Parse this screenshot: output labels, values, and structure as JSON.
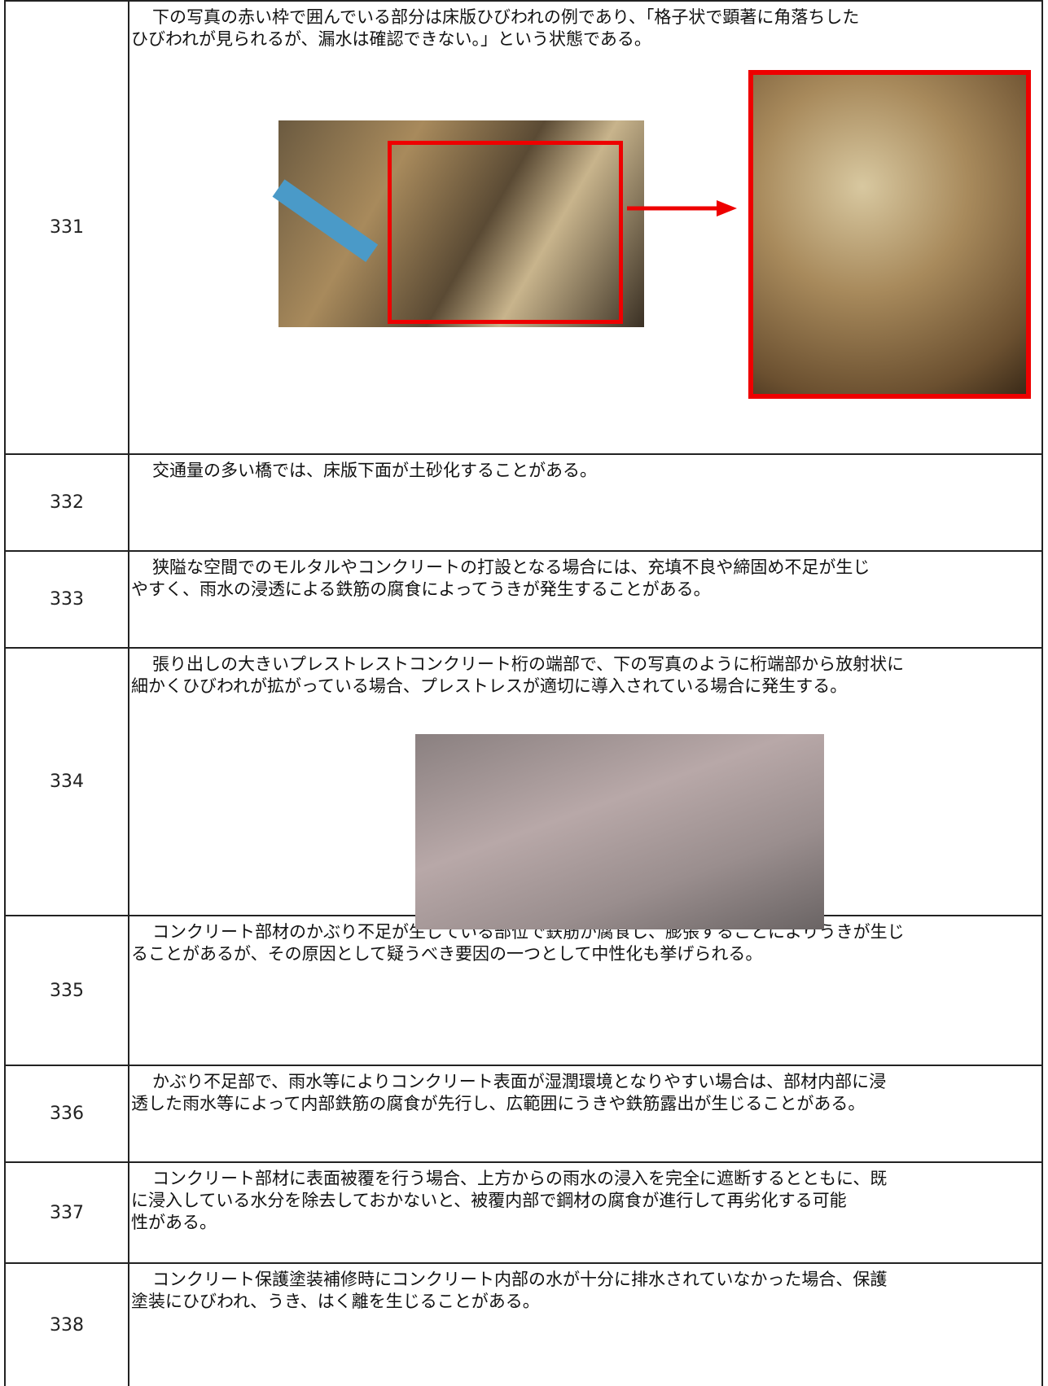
{
  "table": {
    "rows": [
      {
        "number": "331",
        "lines": [
          "下の写真の赤い枠で囲んでいる部分は床版ひびわれの例であり、「格子状で顕著に角落ちした",
          "ひびわれが見られるが、漏水は確認できない。」という状態である。"
        ]
      },
      {
        "number": "332",
        "lines": [
          "交通量の多い橋では、床版下面が土砂化することがある。"
        ]
      },
      {
        "number": "333",
        "lines": [
          "狭隘な空間でのモルタルやコンクリートの打設となる場合には、充填不良や締固め不足が生じ",
          "やすく、雨水の浸透による鉄筋の腐食によってうきが発生することがある。"
        ]
      },
      {
        "number": "334",
        "lines": [
          "張り出しの大きいプレストレストコンクリート桁の端部で、下の写真のように桁端部から放射状に",
          "細かくひびわれが拡がっている場合、プレストレスが適切に導入されている場合に発生する。"
        ]
      },
      {
        "number": "335",
        "lines": [
          "コンクリート部材のかぶり不足が生じている部位で鉄筋が腐食し、膨張することによりうきが生じ",
          "ることがあるが、その原因として疑うべき要因の一つとして中性化も挙げられる。"
        ]
      },
      {
        "number": "336",
        "lines": [
          "かぶり不足部で、雨水等によりコンクリート表面が湿潤環境となりやすい場合は、部材内部に浸",
          "透した雨水等によって内部鉄筋の腐食が先行し、広範囲にうきや鉄筋露出が生じることがある。"
        ]
      },
      {
        "number": "337",
        "lines": [
          "コンクリート部材に表面被覆を行う場合、上方からの雨水の浸入を完全に遮断するとともに、既",
          "に浸入している水分を除去しておかないと、被覆内部で鋼材の腐食が進行して再劣化する可能",
          "性がある。"
        ]
      },
      {
        "number": "338",
        "lines": [
          "コンクリート保護塗装補修時にコンクリート内部の水が十分に排水されていなかった場合、保護",
          "塗装にひびわれ、うき、はく離を生じることがある。"
        ]
      }
    ]
  }
}
